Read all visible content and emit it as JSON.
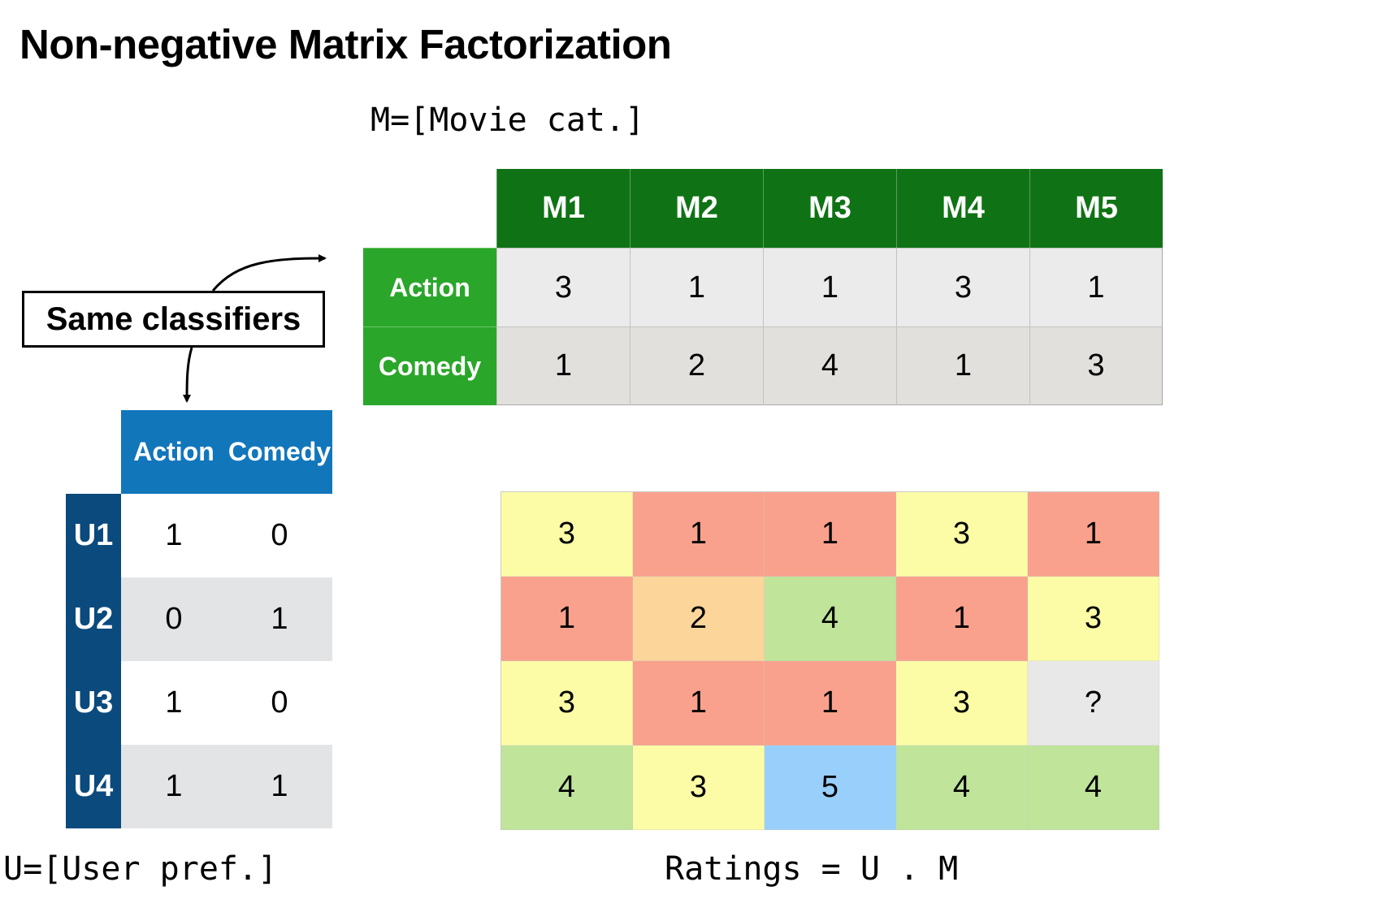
{
  "title": "Non-negative Matrix Factorization",
  "m_matrix": {
    "caption": "M=[Movie cat.]",
    "columns": [
      "M1",
      "M2",
      "M3",
      "M4",
      "M5"
    ],
    "rows": [
      {
        "label": "Action",
        "values": [
          "3",
          "1",
          "1",
          "3",
          "1"
        ]
      },
      {
        "label": "Comedy",
        "values": [
          "1",
          "2",
          "4",
          "1",
          "3"
        ]
      }
    ],
    "colors": {
      "header": "#0f7315",
      "row_header": "#2aa62a"
    }
  },
  "u_matrix": {
    "caption": "U=[User pref.]",
    "columns": [
      "Action",
      "Comedy"
    ],
    "rows": [
      {
        "label": "U1",
        "values": [
          "1",
          "0"
        ]
      },
      {
        "label": "U2",
        "values": [
          "0",
          "1"
        ]
      },
      {
        "label": "U3",
        "values": [
          "1",
          "0"
        ]
      },
      {
        "label": "U4",
        "values": [
          "1",
          "1"
        ]
      }
    ],
    "colors": {
      "header": "#1276bb",
      "row_header": "#0b4a7d"
    }
  },
  "ratings": {
    "caption": "Ratings = U . M",
    "rows": [
      [
        "3",
        "1",
        "1",
        "3",
        "1"
      ],
      [
        "1",
        "2",
        "4",
        "1",
        "3"
      ],
      [
        "3",
        "1",
        "1",
        "3",
        "?"
      ],
      [
        "4",
        "3",
        "5",
        "4",
        "4"
      ]
    ],
    "colors": {
      "1": "#f9a18d",
      "2": "#fbd59a",
      "3": "#fcfca6",
      "4": "#bfe49a",
      "5": "#99cffb",
      "?": "#e8e8e8"
    }
  },
  "annotation": {
    "label": "Same classifiers",
    "icons": [
      "arrow-to-m-matrix-icon",
      "arrow-to-u-matrix-icon"
    ]
  }
}
